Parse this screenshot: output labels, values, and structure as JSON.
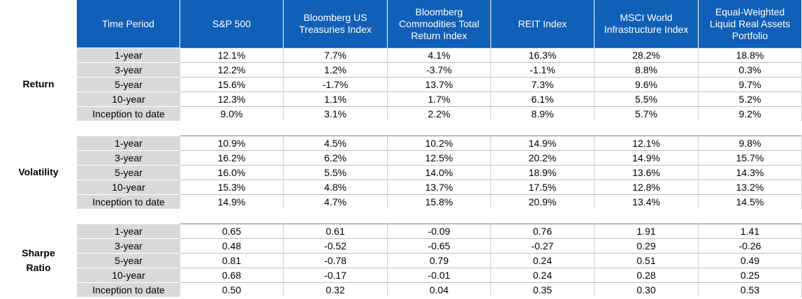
{
  "chart_data": {
    "type": "table",
    "columns": [
      "Time Period",
      "S&P 500",
      "Bloomberg US Treasuries Index",
      "Bloomberg Commodities Total Return Index",
      "REIT Index",
      "MSCI World Infrastructure Index",
      "Equal-Weighted Liquid Real Assets Portfolio"
    ],
    "groups": [
      {
        "name": "Return",
        "rows": [
          {
            "period": "1-year",
            "values": [
              "12.1%",
              "7.7%",
              "4.1%",
              "16.3%",
              "28.2%",
              "18.8%"
            ]
          },
          {
            "period": "3-year",
            "values": [
              "12.2%",
              "1.2%",
              "-3.7%",
              "-1.1%",
              "8.8%",
              "0.3%"
            ]
          },
          {
            "period": "5-year",
            "values": [
              "15.6%",
              "-1.7%",
              "13.7%",
              "7.3%",
              "9.6%",
              "9.7%"
            ]
          },
          {
            "period": "10-year",
            "values": [
              "12.3%",
              "1.1%",
              "1.7%",
              "6.1%",
              "5.5%",
              "5.2%"
            ]
          },
          {
            "period": "Inception to date",
            "values": [
              "9.0%",
              "3.1%",
              "2.2%",
              "8.9%",
              "5.7%",
              "9.2%"
            ]
          }
        ]
      },
      {
        "name": "Volatility",
        "rows": [
          {
            "period": "1-year",
            "values": [
              "10.9%",
              "4.5%",
              "10.2%",
              "14.9%",
              "12.1%",
              "9.8%"
            ]
          },
          {
            "period": "3-year",
            "values": [
              "16.2%",
              "6.2%",
              "12.5%",
              "20.2%",
              "14.9%",
              "15.7%"
            ]
          },
          {
            "period": "5-year",
            "values": [
              "16.0%",
              "5.5%",
              "14.0%",
              "18.9%",
              "13.6%",
              "14.3%"
            ]
          },
          {
            "period": "10-year",
            "values": [
              "15.3%",
              "4.8%",
              "13.7%",
              "17.5%",
              "12.8%",
              "13.2%"
            ]
          },
          {
            "period": "Inception to date",
            "values": [
              "14.9%",
              "4.7%",
              "15.8%",
              "20.9%",
              "13.4%",
              "14.5%"
            ]
          }
        ]
      },
      {
        "name": "Sharpe Ratio",
        "rows": [
          {
            "period": "1-year",
            "values": [
              "0.65",
              "0.61",
              "-0.09",
              "0.76",
              "1.91",
              "1.41"
            ]
          },
          {
            "period": "3-year",
            "values": [
              "0.48",
              "-0.52",
              "-0.65",
              "-0.27",
              "0.29",
              "-0.26"
            ]
          },
          {
            "period": "5-year",
            "values": [
              "0.81",
              "-0.78",
              "0.79",
              "0.24",
              "0.51",
              "0.49"
            ]
          },
          {
            "period": "10-year",
            "values": [
              "0.68",
              "-0.17",
              "-0.01",
              "0.24",
              "0.28",
              "0.25"
            ]
          },
          {
            "period": "Inception to date",
            "values": [
              "0.50",
              "0.32",
              "0.04",
              "0.35",
              "0.30",
              "0.53"
            ]
          }
        ]
      }
    ],
    "colors": {
      "header_bg": "#1060b8",
      "header_text": "#ffffff",
      "period_bg": "#d9d9d9"
    }
  }
}
